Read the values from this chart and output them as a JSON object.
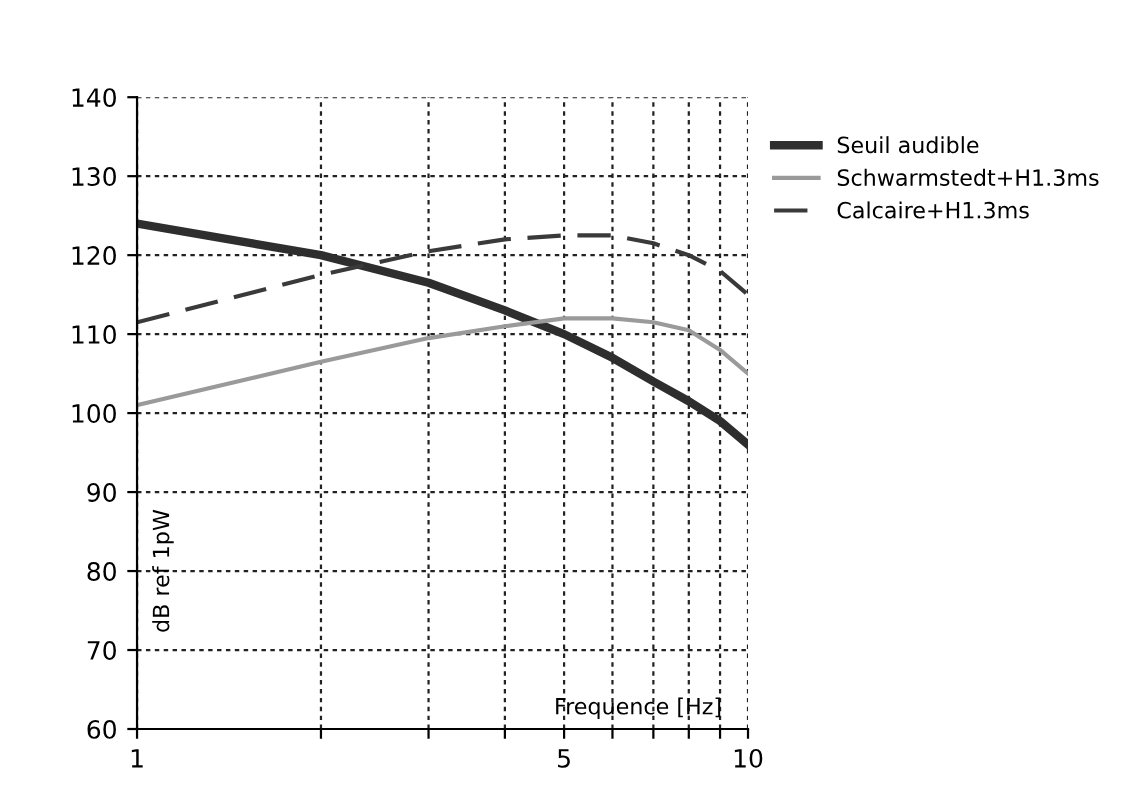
{
  "chart_data": {
    "type": "line",
    "xlabel": "Frequence [Hz]",
    "ylabel": "dB ref 1pW",
    "log": "x",
    "x": [
      1,
      2,
      3,
      4,
      5,
      6,
      7,
      8,
      9,
      10
    ],
    "series": [
      {
        "name": "Seuil audible",
        "color": "#2e2e2e",
        "values": [
          124,
          120,
          116.5,
          113,
          110,
          107,
          104,
          101.5,
          99,
          96
        ]
      },
      {
        "name": "Schwarmstedt+H1.3ms",
        "color": "#9a9a9a",
        "values": [
          101,
          106.5,
          109.5,
          111,
          112,
          112,
          111.5,
          110.5,
          108,
          105
        ]
      },
      {
        "name": "Calcaire+H1.3ms",
        "color": "#3a3a3a",
        "line_style": "dashed",
        "values": [
          111.5,
          117.5,
          120.5,
          122,
          122.5,
          122.5,
          121.5,
          120,
          118,
          115
        ]
      }
    ],
    "xlim": [
      1,
      10
    ],
    "ylim": [
      60,
      140
    ],
    "xticks": [
      1,
      {
        "value": 2,
        "label": null
      },
      {
        "value": 3,
        "label": null
      },
      {
        "value": 4,
        "label": null
      },
      5,
      {
        "value": 6,
        "label": null
      },
      {
        "value": 7,
        "label": null
      },
      {
        "value": 8,
        "label": null
      },
      {
        "value": 9,
        "label": null
      },
      10
    ],
    "yticks": [
      60,
      70,
      80,
      90,
      100,
      110,
      120,
      130,
      140
    ],
    "grid": true,
    "legend": "top right"
  }
}
